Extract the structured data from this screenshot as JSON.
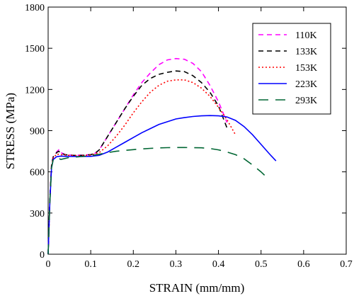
{
  "chart_data": {
    "type": "line",
    "title": "",
    "xlabel": "STRAIN (mm/mm)",
    "ylabel": "STRESS (MPa)",
    "xlim": [
      0,
      0.7
    ],
    "ylim": [
      0,
      1800
    ],
    "x_ticks": [
      "0",
      "0.1",
      "0.2",
      "0.3",
      "0.4",
      "0.5",
      "0.6",
      "0.7"
    ],
    "y_ticks": [
      "0",
      "300",
      "600",
      "900",
      "1200",
      "1500",
      "1800"
    ],
    "grid": false,
    "legend_position": "top-right",
    "series": [
      {
        "name": "110K",
        "color": "#ff00ff",
        "style": "dashed",
        "points": [
          [
            0,
            0
          ],
          [
            0.004,
            400
          ],
          [
            0.008,
            650
          ],
          [
            0.012,
            710
          ],
          [
            0.016,
            720
          ],
          [
            0.02,
            745
          ],
          [
            0.025,
            760
          ],
          [
            0.03,
            740
          ],
          [
            0.04,
            725
          ],
          [
            0.06,
            720
          ],
          [
            0.08,
            722
          ],
          [
            0.1,
            725
          ],
          [
            0.11,
            735
          ],
          [
            0.12,
            760
          ],
          [
            0.14,
            860
          ],
          [
            0.16,
            960
          ],
          [
            0.18,
            1060
          ],
          [
            0.2,
            1160
          ],
          [
            0.22,
            1250
          ],
          [
            0.24,
            1320
          ],
          [
            0.26,
            1380
          ],
          [
            0.28,
            1415
          ],
          [
            0.3,
            1425
          ],
          [
            0.32,
            1420
          ],
          [
            0.34,
            1390
          ],
          [
            0.36,
            1330
          ],
          [
            0.38,
            1230
          ],
          [
            0.4,
            1110
          ],
          [
            0.42,
            960
          ]
        ]
      },
      {
        "name": "133K",
        "color": "#000000",
        "style": "dashed",
        "points": [
          [
            0,
            0
          ],
          [
            0.004,
            400
          ],
          [
            0.008,
            650
          ],
          [
            0.012,
            710
          ],
          [
            0.016,
            720
          ],
          [
            0.02,
            740
          ],
          [
            0.025,
            750
          ],
          [
            0.03,
            735
          ],
          [
            0.04,
            725
          ],
          [
            0.06,
            720
          ],
          [
            0.08,
            720
          ],
          [
            0.1,
            725
          ],
          [
            0.11,
            735
          ],
          [
            0.12,
            760
          ],
          [
            0.14,
            860
          ],
          [
            0.16,
            960
          ],
          [
            0.18,
            1060
          ],
          [
            0.2,
            1150
          ],
          [
            0.22,
            1230
          ],
          [
            0.24,
            1280
          ],
          [
            0.26,
            1310
          ],
          [
            0.28,
            1325
          ],
          [
            0.3,
            1335
          ],
          [
            0.32,
            1330
          ],
          [
            0.34,
            1300
          ],
          [
            0.36,
            1250
          ],
          [
            0.38,
            1180
          ],
          [
            0.4,
            1080
          ],
          [
            0.42,
            920
          ]
        ]
      },
      {
        "name": "153K",
        "color": "#ff0000",
        "style": "dotted",
        "points": [
          [
            0,
            0
          ],
          [
            0.004,
            380
          ],
          [
            0.008,
            640
          ],
          [
            0.012,
            705
          ],
          [
            0.016,
            715
          ],
          [
            0.02,
            730
          ],
          [
            0.03,
            725
          ],
          [
            0.05,
            720
          ],
          [
            0.08,
            718
          ],
          [
            0.1,
            722
          ],
          [
            0.12,
            740
          ],
          [
            0.14,
            790
          ],
          [
            0.16,
            860
          ],
          [
            0.18,
            940
          ],
          [
            0.2,
            1030
          ],
          [
            0.22,
            1110
          ],
          [
            0.24,
            1180
          ],
          [
            0.26,
            1230
          ],
          [
            0.28,
            1260
          ],
          [
            0.3,
            1270
          ],
          [
            0.32,
            1270
          ],
          [
            0.34,
            1250
          ],
          [
            0.36,
            1210
          ],
          [
            0.38,
            1150
          ],
          [
            0.4,
            1070
          ],
          [
            0.42,
            980
          ],
          [
            0.44,
            870
          ]
        ]
      },
      {
        "name": "223K",
        "color": "#0000ff",
        "style": "solid",
        "points": [
          [
            0,
            0
          ],
          [
            0.004,
            380
          ],
          [
            0.008,
            630
          ],
          [
            0.012,
            690
          ],
          [
            0.016,
            700
          ],
          [
            0.02,
            710
          ],
          [
            0.03,
            715
          ],
          [
            0.05,
            712
          ],
          [
            0.08,
            712
          ],
          [
            0.1,
            713
          ],
          [
            0.12,
            720
          ],
          [
            0.14,
            745
          ],
          [
            0.16,
            780
          ],
          [
            0.18,
            815
          ],
          [
            0.2,
            850
          ],
          [
            0.22,
            885
          ],
          [
            0.24,
            915
          ],
          [
            0.26,
            945
          ],
          [
            0.28,
            965
          ],
          [
            0.3,
            985
          ],
          [
            0.32,
            995
          ],
          [
            0.34,
            1003
          ],
          [
            0.36,
            1008
          ],
          [
            0.38,
            1010
          ],
          [
            0.4,
            1008
          ],
          [
            0.42,
            1000
          ],
          [
            0.44,
            975
          ],
          [
            0.46,
            930
          ],
          [
            0.48,
            870
          ],
          [
            0.5,
            800
          ],
          [
            0.52,
            730
          ],
          [
            0.535,
            680
          ]
        ]
      },
      {
        "name": "293K",
        "color": "#006633",
        "style": "long-dashed",
        "points": [
          [
            0,
            0
          ],
          [
            0.004,
            380
          ],
          [
            0.008,
            630
          ],
          [
            0.012,
            690
          ],
          [
            0.016,
            700
          ],
          [
            0.02,
            705
          ],
          [
            0.03,
            690
          ],
          [
            0.05,
            705
          ],
          [
            0.08,
            712
          ],
          [
            0.1,
            718
          ],
          [
            0.12,
            728
          ],
          [
            0.14,
            740
          ],
          [
            0.16,
            750
          ],
          [
            0.18,
            756
          ],
          [
            0.2,
            762
          ],
          [
            0.22,
            767
          ],
          [
            0.24,
            771
          ],
          [
            0.26,
            774
          ],
          [
            0.28,
            776
          ],
          [
            0.3,
            777
          ],
          [
            0.32,
            777
          ],
          [
            0.34,
            776
          ],
          [
            0.36,
            775
          ],
          [
            0.38,
            770
          ],
          [
            0.4,
            760
          ],
          [
            0.42,
            745
          ],
          [
            0.44,
            725
          ],
          [
            0.46,
            695
          ],
          [
            0.48,
            650
          ],
          [
            0.5,
            600
          ],
          [
            0.515,
            555
          ]
        ]
      }
    ]
  }
}
